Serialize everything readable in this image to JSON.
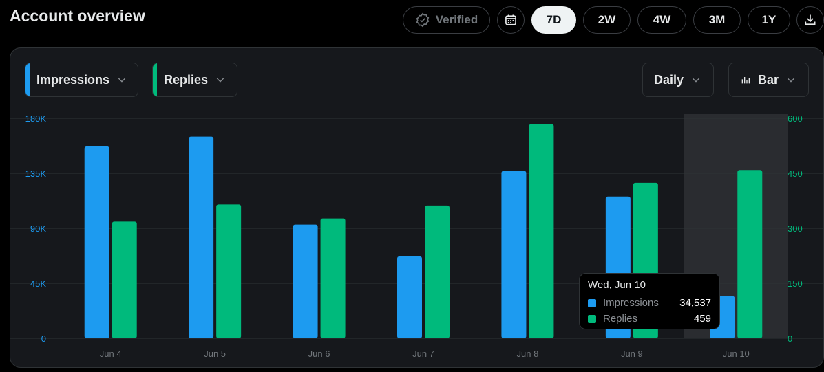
{
  "header": {
    "title": "Account overview",
    "verified_label": "Verified",
    "ranges": [
      "7D",
      "2W",
      "4W",
      "3M",
      "1Y"
    ],
    "active_range": "7D",
    "icons": [
      "calendar-icon",
      "download-icon",
      "verified-badge-icon"
    ]
  },
  "controls": {
    "metric1": "Impressions",
    "metric2": "Replies",
    "interval": "Daily",
    "chart_type": "Bar"
  },
  "colors": {
    "impressions": "#1d9bf0",
    "replies": "#00ba7c",
    "axis_left": "#1d9bf0",
    "axis_right": "#00ba7c"
  },
  "chart_data": {
    "type": "bar",
    "categories": [
      "Jun 4",
      "Jun 5",
      "Jun 6",
      "Jun 7",
      "Jun 8",
      "Jun 9",
      "Jun 10"
    ],
    "series": [
      {
        "name": "Impressions",
        "axis": "left",
        "values": [
          157000,
          165000,
          93000,
          67000,
          137000,
          116000,
          34537
        ]
      },
      {
        "name": "Replies",
        "axis": "right",
        "values": [
          318,
          365,
          327,
          362,
          584,
          424,
          459
        ]
      }
    ],
    "y_left": {
      "ticks": [
        "0",
        "45K",
        "90K",
        "135K",
        "180K"
      ],
      "ylim": [
        0,
        180000
      ]
    },
    "y_right": {
      "ticks": [
        "0",
        "150",
        "300",
        "450",
        "600"
      ],
      "ylim": [
        0,
        600
      ]
    },
    "highlighted_category": "Jun 10",
    "grid": true
  },
  "tooltip": {
    "title": "Wed, Jun 10",
    "rows": [
      {
        "name": "Impressions",
        "value": "34,537"
      },
      {
        "name": "Replies",
        "value": "459"
      }
    ]
  }
}
